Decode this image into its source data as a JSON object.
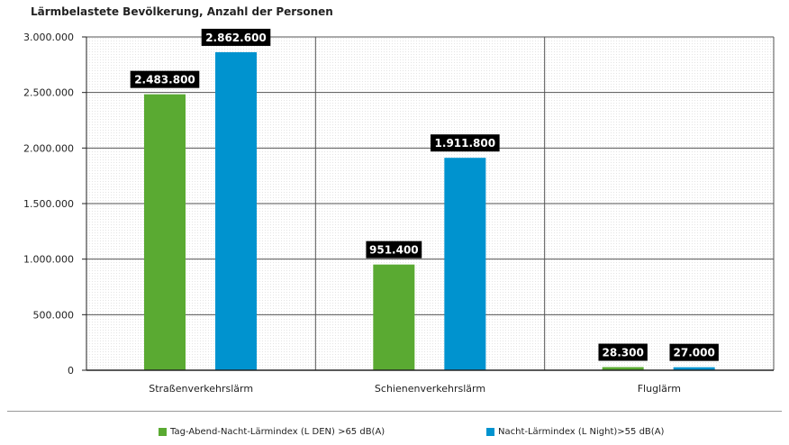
{
  "chart_data": {
    "type": "bar",
    "title": "Lärmbelastete Bevölkerung, Anzahl der Personen",
    "categories": [
      "Straßenverkehrslärm",
      "Schienenverkehrslärm",
      "Fluglärm"
    ],
    "series": [
      {
        "name": "Tag-Abend-Nacht-Lärmindex (L DEN) >65 dB(A)",
        "color": "#5aaa32",
        "values": [
          2483800,
          951400,
          28300
        ],
        "labels": [
          "2.483.800",
          "951.400",
          "28.300"
        ]
      },
      {
        "name": "Nacht-Lärmindex (L Night)>55 dB(A)",
        "color": "#0093cf",
        "values": [
          2862600,
          1911800,
          27000
        ],
        "labels": [
          "2.862.600",
          "1.911.800",
          "27.000"
        ]
      }
    ],
    "ylim": [
      0,
      3000000
    ],
    "yticks": [
      0,
      500000,
      1000000,
      1500000,
      2000000,
      2500000,
      3000000
    ],
    "ytick_labels": [
      "0",
      "500.000",
      "1.000.000",
      "1.500.000",
      "2.000.000",
      "2.500.000",
      "3.000.000"
    ],
    "grid": true,
    "legend_position": "bottom"
  }
}
